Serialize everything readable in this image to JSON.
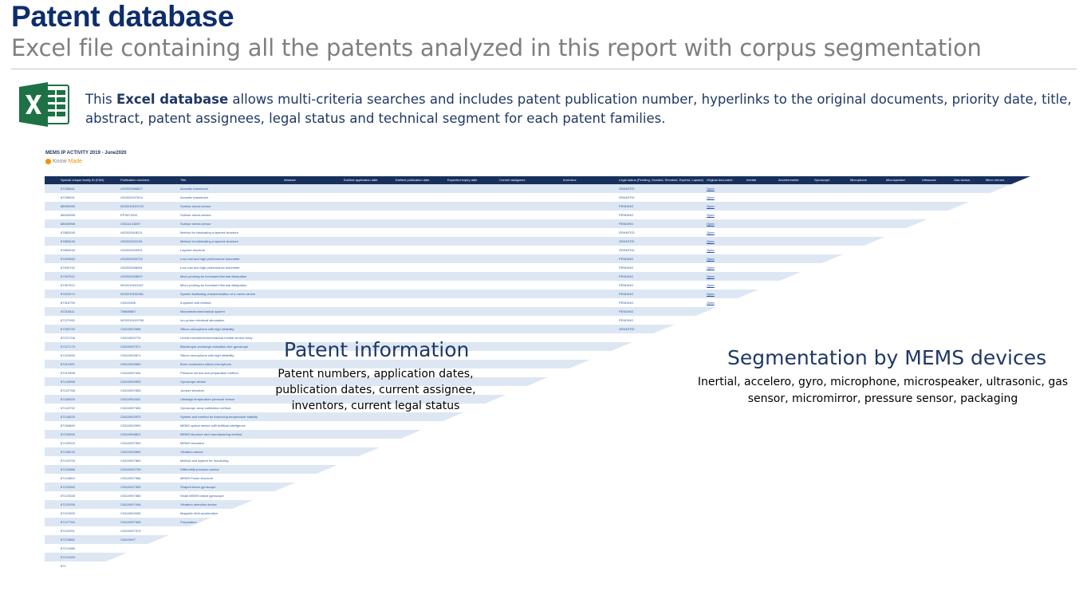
{
  "title": "Patent database",
  "subtitle": "Excel file containing all the patents analyzed in this report with corpus segmentation",
  "intro": {
    "prefix": "This ",
    "bold": "Excel database",
    "rest": " allows multi-criteria searches and includes patent publication number, hyperlinks to the original documents, priority date, title, abstract, patent assignees, legal status and technical segment for each patent  families."
  },
  "sheet": {
    "title": "MEMS IP ACTIVITY 2019 - June2020",
    "logo_know": "Know",
    "logo_made": "Made",
    "headers": [
      "Special unique family ID (FAN)",
      "Publication numbers",
      "Title",
      "Abstract",
      "Earliest application date",
      "Earliest publication date",
      "Expected expiry date",
      "Current assignees",
      "Inventors",
      "Legal status (Pending, Granted, Revoked, Expired, Lapsed)",
      "Original document",
      "Inertial",
      "Accelerometer",
      "Gyroscope",
      "Microphone",
      "Microspeaker",
      "Ultrasonic",
      "Gas sensor",
      "Micro mirrors"
    ],
    "rows": [
      {
        "id": "87236041",
        "pub": "US2020096827",
        "title": "Acoustic transducer",
        "legal": "GRANTED",
        "link": "Open"
      },
      {
        "id": "87236041",
        "pub": "US2020107614",
        "title": "Acoustic transducer",
        "legal": "GRANTED",
        "link": "Open"
      },
      {
        "id": "88052998",
        "pub": "WO2019229722",
        "title": "Surface stress sensor",
        "legal": "PENDING",
        "link": "Open"
      },
      {
        "id": "88040998",
        "pub": "EP3671004",
        "title": "Surface stress sensor",
        "legal": "PENDING",
        "link": "Open"
      },
      {
        "id": "88040998",
        "pub": "CN111141897",
        "title": "Surface stress sensor",
        "legal": "PENDING",
        "link": "Open"
      },
      {
        "id": "87883248",
        "pub": "US2020018211",
        "title": "Method for fabricating a layered structure",
        "legal": "GRANTED",
        "link": "Open"
      },
      {
        "id": "87883248",
        "pub": "US2020021134",
        "title": "Method for fabricating a layered structure",
        "legal": "GRANTED",
        "link": "Open"
      },
      {
        "id": "87883248",
        "pub": "US2020020921",
        "title": "Layered structure",
        "legal": "GRANTED",
        "link": "Open"
      },
      {
        "id": "87429060",
        "pub": "US2020033702",
        "title": "Low cost and high performance bolometer",
        "legal": "PENDING",
        "link": "Open"
      },
      {
        "id": "87400740",
        "pub": "US2020048081",
        "title": "Low cost and high performance bolometer",
        "legal": "PENDING",
        "link": "Open"
      },
      {
        "id": "87497512",
        "pub": "US2020028697",
        "title": "Micro-probing for increased thermal dissipation",
        "legal": "PENDING",
        "link": "Open"
      },
      {
        "id": "87497512",
        "pub": "WO2019241157",
        "title": "Micro-probing for increased thermal dissipation",
        "legal": "PENDING",
        "link": "Open"
      },
      {
        "id": "87523474",
        "pub": "WO2019232081",
        "title": "System facilitating characterization of a mems device",
        "legal": "PENDING",
        "link": "Open"
      },
      {
        "id": "87318799",
        "pub": "CN110396",
        "title": "A system and method",
        "legal": "PENDING",
        "link": "Open"
      },
      {
        "id": "87316611",
        "pub": "TW689807",
        "title": "Microelectromechanical system",
        "legal": "PENDING",
        "link": ""
      },
      {
        "id": "87127992",
        "pub": "WO2019193795",
        "title": "Ion-proton electrical stimulation",
        "legal": "PENDING",
        "link": ""
      },
      {
        "id": "87333733",
        "pub": "CN110902998",
        "title": "Silicon microphone with high reliability",
        "legal": "GRANTED",
        "link": ""
      },
      {
        "id": "87221708",
        "pub": "CN110902776",
        "title": "Linear microelectromechanical inertial sensor array",
        "legal": "",
        "link": ""
      },
      {
        "id": "87127173",
        "pub": "CN110907371",
        "title": "Biaxial spin-exchange relaxation-free gyroscope",
        "legal": "",
        "link": ""
      },
      {
        "id": "87224049",
        "pub": "CN110902871",
        "title": "Silicon microphone with high reliability",
        "legal": "",
        "link": ""
      },
      {
        "id": "87211009",
        "pub": "CN110905380",
        "title": "Bone conduction silicon microphone",
        "legal": "",
        "link": ""
      },
      {
        "id": "87212998",
        "pub": "CN110907434",
        "title": "Pressure sensor and preparation method",
        "legal": "",
        "link": ""
      },
      {
        "id": "87143998",
        "pub": "CN110902993",
        "title": "Gyroscope device",
        "legal": "",
        "link": ""
      },
      {
        "id": "87122768",
        "pub": "CN110907808",
        "title": "Jumper structure",
        "legal": "",
        "link": ""
      },
      {
        "id": "87183029",
        "pub": "CN110902441",
        "title": "Ultrahigh temperature pressure sensor",
        "legal": "",
        "link": ""
      },
      {
        "id": "87143792",
        "pub": "CN110907406",
        "title": "Gyroscope array calibration method",
        "legal": "",
        "link": ""
      },
      {
        "id": "87143025",
        "pub": "CN110902970",
        "title": "System and method for improving temperature stability",
        "legal": "",
        "link": ""
      },
      {
        "id": "87184849",
        "pub": "CN110902990",
        "title": "MEMS optical sensor with artificial intelligence",
        "legal": "",
        "link": ""
      },
      {
        "id": "87135926",
        "pub": "CN110906821",
        "title": "MEMS structure and manufacturing method",
        "legal": "",
        "link": ""
      },
      {
        "id": "87120929",
        "pub": "CN110907300",
        "title": "MEMS resonator",
        "legal": "",
        "link": ""
      },
      {
        "id": "87136216",
        "pub": "CN110902590",
        "title": "Vibration sensor",
        "legal": "",
        "link": ""
      },
      {
        "id": "87120794",
        "pub": "CN110907563",
        "title": "Method and system for monitoring",
        "legal": "",
        "link": ""
      },
      {
        "id": "87120888",
        "pub": "CN110902799",
        "title": "Differential pressure sensor",
        "legal": "",
        "link": ""
      },
      {
        "id": "87124802",
        "pub": "CN110907388",
        "title": "MEMS Power structure",
        "legal": "",
        "link": ""
      },
      {
        "id": "87120283",
        "pub": "CN110907305",
        "title": "Shaped beam gyroscope",
        "legal": "",
        "link": ""
      },
      {
        "id": "87123328",
        "pub": "CN110907366",
        "title": "Small MEMS based gyroscope",
        "legal": "",
        "link": ""
      },
      {
        "id": "87120295",
        "pub": "CN110907446",
        "title": "Vibration detection device",
        "legal": "",
        "link": ""
      },
      {
        "id": "87121525",
        "pub": "CN110902936",
        "title": "Magnetic field acceleration",
        "legal": "",
        "link": ""
      },
      {
        "id": "87127764",
        "pub": "CN110907408",
        "title": "Preparation",
        "legal": "",
        "link": ""
      },
      {
        "id": "87122091",
        "pub": "CN110907379",
        "title": "",
        "legal": "",
        "link": ""
      },
      {
        "id": "87123882",
        "pub": "CN110907",
        "title": "",
        "legal": "",
        "link": ""
      },
      {
        "id": "87121986",
        "pub": "",
        "title": "",
        "legal": "",
        "link": ""
      },
      {
        "id": "87121494",
        "pub": "",
        "title": "",
        "legal": "",
        "link": ""
      },
      {
        "id": "871",
        "pub": "",
        "title": "",
        "legal": "",
        "link": ""
      }
    ]
  },
  "patent_info": {
    "title": "Patent information",
    "text": "Patent numbers, application dates, publication dates, current assignee, inventors, current legal status"
  },
  "segmentation": {
    "title": "Segmentation by MEMS devices",
    "text": "Inertial, accelero, gyro, microphone, microspeaker, ultrasonic, gas sensor, micromirror, pressure sensor, packaging"
  },
  "colors": {
    "title": "#0d2d6c",
    "subtitle": "#7f7f7f",
    "header_bar": "#17305c",
    "alt_row": "#dde7f3",
    "excel_green": "#1e7145"
  },
  "icon": "excel-icon"
}
